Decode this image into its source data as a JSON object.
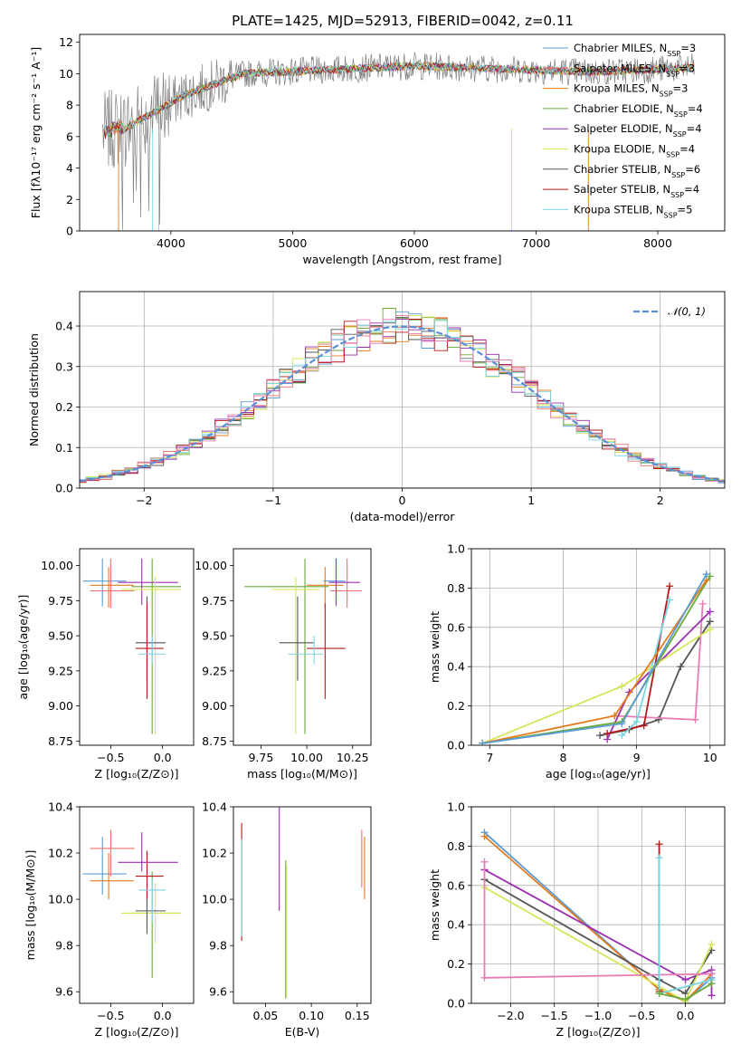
{
  "title": "PLATE=1425, MJD=52913, FIBERID=0042, z=0.11",
  "colors": {
    "chabrier_miles": "#5b9bd5",
    "salpeter_miles": "#e8726a",
    "kroupa_miles": "#e57c1c",
    "chabrier_elodie": "#6aaa3a",
    "salpeter_elodie": "#9b2faf",
    "kroupa_elodie": "#d7e55a",
    "chabrier_stelib": "#555555",
    "salpeter_stelib": "#b31b1b",
    "kroupa_stelib": "#78d6e0",
    "pink": "#e57db4",
    "spectrum": "#808080",
    "normal": "#5b8fd6"
  },
  "chart_data": [
    {
      "type": "line",
      "xlabel": "wavelength [Angstrom, rest frame]",
      "ylabel": "Flux [fλ10⁻¹⁷ erg cm⁻² s⁻¹ A⁻¹]",
      "xlim": [
        3250,
        8550
      ],
      "ylim": [
        0,
        12.5
      ],
      "xticks": [
        4000,
        5000,
        6000,
        7000,
        8000
      ],
      "yticks": [
        0,
        2,
        4,
        6,
        8,
        10,
        12
      ],
      "legend": [
        {
          "label": "Chabrier MILES, N",
          "sub": "SSP",
          "val": "=3",
          "color": "#5b9bd5"
        },
        {
          "label": "Salpeter MILES, N",
          "sub": "SSP",
          "val": "=3",
          "color": "#e8726a"
        },
        {
          "label": "Kroupa MILES, N",
          "sub": "SSP",
          "val": "=3",
          "color": "#e57c1c"
        },
        {
          "label": "Chabrier ELODIE, N",
          "sub": "SSP",
          "val": "=4",
          "color": "#6aaa3a"
        },
        {
          "label": "Salpeter ELODIE, N",
          "sub": "SSP",
          "val": "=4",
          "color": "#9b2faf"
        },
        {
          "label": "Kroupa ELODIE, N",
          "sub": "SSP",
          "val": "=4",
          "color": "#d7e55a"
        },
        {
          "label": "Chabrier STELIB, N",
          "sub": "SSP",
          "val": "=6",
          "color": "#555555"
        },
        {
          "label": "Salpeter STELIB, N",
          "sub": "SSP",
          "val": "=4",
          "color": "#b31b1b"
        },
        {
          "label": "Kroupa STELIB, N",
          "sub": "SSP",
          "val": "=5",
          "color": "#78d6e0"
        }
      ]
    },
    {
      "type": "line",
      "xlabel": "(data-model)/error",
      "ylabel": "Normed distribution",
      "xlim": [
        -2.5,
        2.5
      ],
      "ylim": [
        0,
        0.485
      ],
      "xticks": [
        -2,
        -1,
        0,
        1,
        2
      ],
      "yticks": [
        0.0,
        0.1,
        0.2,
        0.3,
        0.4
      ],
      "legend": "𝒩(0, 1)"
    },
    {
      "type": "scatter",
      "xlabel": "Z [log₁₀(Z/Z⊙)]",
      "ylabel": "age  [log₁₀(age/yr)]",
      "xlim": [
        -0.8,
        0.3
      ],
      "ylim": [
        8.72,
        10.12
      ],
      "xticks": [
        -0.5,
        0.0
      ],
      "yticks": [
        8.75,
        9.0,
        9.25,
        9.5,
        9.75,
        10.0
      ],
      "points": [
        {
          "x": -0.58,
          "y": 9.89,
          "ex": [
            -0.77,
            -0.35
          ],
          "ey": [
            9.71,
            10.05
          ],
          "color": "#5b9bd5"
        },
        {
          "x": -0.5,
          "y": 9.82,
          "ex": [
            -0.7,
            -0.27
          ],
          "ey": [
            9.7,
            10.05
          ],
          "color": "#e8726a"
        },
        {
          "x": -0.52,
          "y": 9.86,
          "ex": [
            -0.7,
            -0.28
          ],
          "ey": [
            9.7,
            9.99
          ],
          "color": "#e57c1c"
        },
        {
          "x": -0.1,
          "y": 9.85,
          "ex": [
            -0.3,
            0.18
          ],
          "ey": [
            8.8,
            10.05
          ],
          "color": "#6aaa3a"
        },
        {
          "x": -0.2,
          "y": 9.88,
          "ex": [
            -0.43,
            0.15
          ],
          "ey": [
            9.72,
            10.05
          ],
          "color": "#9b2faf"
        },
        {
          "x": -0.07,
          "y": 9.83,
          "ex": [
            -0.4,
            0.18
          ],
          "ey": [
            8.8,
            9.92
          ],
          "color": "#d7e55a"
        },
        {
          "x": -0.15,
          "y": 9.45,
          "ex": [
            -0.26,
            0.03
          ],
          "ey": [
            9.18,
            9.78
          ],
          "color": "#555555"
        },
        {
          "x": -0.15,
          "y": 9.41,
          "ex": [
            -0.26,
            0.01
          ],
          "ey": [
            9.05,
            9.73
          ],
          "color": "#b31b1b"
        },
        {
          "x": -0.1,
          "y": 9.37,
          "ex": [
            -0.23,
            0.03
          ],
          "ey": [
            9.3,
            9.5
          ],
          "color": "#78d6e0"
        }
      ]
    },
    {
      "type": "scatter",
      "xlabel": "mass [log₁₀(M/M⊙)]",
      "ylabel": "",
      "xlim": [
        9.6,
        10.35
      ],
      "ylim": [
        8.72,
        10.12
      ],
      "xticks": [
        9.75,
        10.0,
        10.25
      ],
      "yticks": [
        8.75,
        9.0,
        9.25,
        9.5,
        9.75,
        10.0
      ],
      "points": [
        {
          "x": 10.16,
          "y": 9.89,
          "ex": [
            10.09,
            10.21
          ],
          "ey": [
            9.71,
            10.05
          ],
          "color": "#5b9bd5"
        },
        {
          "x": 10.22,
          "y": 9.82,
          "ex": [
            10.13,
            10.3
          ],
          "ey": [
            9.7,
            10.05
          ],
          "color": "#e8726a"
        },
        {
          "x": 10.1,
          "y": 9.86,
          "ex": [
            10.0,
            10.2
          ],
          "ey": [
            9.7,
            9.99
          ],
          "color": "#e57c1c"
        },
        {
          "x": 9.99,
          "y": 9.85,
          "ex": [
            9.66,
            10.12
          ],
          "ey": [
            8.8,
            10.05
          ],
          "color": "#6aaa3a"
        },
        {
          "x": 10.16,
          "y": 9.88,
          "ex": [
            10.12,
            10.29
          ],
          "ey": [
            9.72,
            10.05
          ],
          "color": "#9b2faf"
        },
        {
          "x": 9.94,
          "y": 9.83,
          "ex": [
            9.81,
            10.07
          ],
          "ey": [
            8.8,
            9.92
          ],
          "color": "#d7e55a"
        },
        {
          "x": 9.95,
          "y": 9.45,
          "ex": [
            9.85,
            10.04
          ],
          "ey": [
            9.18,
            9.78
          ],
          "color": "#555555"
        },
        {
          "x": 10.1,
          "y": 9.41,
          "ex": [
            10.0,
            10.21
          ],
          "ey": [
            9.05,
            9.73
          ],
          "color": "#b31b1b"
        },
        {
          "x": 10.04,
          "y": 9.37,
          "ex": [
            9.9,
            10.09
          ],
          "ey": [
            9.3,
            9.5
          ],
          "color": "#78d6e0"
        }
      ]
    },
    {
      "type": "line",
      "xlabel": "age  [log₁₀(age/yr)]",
      "ylabel": "mass weight",
      "xlim": [
        6.75,
        10.2
      ],
      "ylim": [
        0,
        1
      ],
      "xticks": [
        7,
        8,
        9,
        10
      ],
      "yticks": [
        0.0,
        0.2,
        0.4,
        0.6,
        0.8,
        1.0
      ],
      "series": [
        {
          "color": "#555555",
          "x": [
            8.5,
            8.9,
            9.3,
            9.6,
            10.0
          ],
          "y": [
            0.05,
            0.08,
            0.13,
            0.4,
            0.63
          ]
        },
        {
          "color": "#e57db4",
          "x": [
            8.7,
            9.8,
            9.9
          ],
          "y": [
            0.15,
            0.13,
            0.72
          ]
        },
        {
          "color": "#9b2faf",
          "x": [
            8.6,
            8.9,
            10.0
          ],
          "y": [
            0.03,
            0.27,
            0.68
          ]
        },
        {
          "color": "#b31b1b",
          "x": [
            8.6,
            9.1,
            9.45
          ],
          "y": [
            0.06,
            0.1,
            0.81
          ]
        },
        {
          "color": "#78d6e0",
          "x": [
            8.8,
            9.0,
            9.45
          ],
          "y": [
            0.05,
            0.12,
            0.74
          ]
        },
        {
          "color": "#d7e55a",
          "x": [
            6.9,
            8.8,
            10.0
          ],
          "y": [
            0.01,
            0.3,
            0.59
          ]
        },
        {
          "color": "#6aaa3a",
          "x": [
            6.9,
            8.8,
            10.0
          ],
          "y": [
            0.01,
            0.12,
            0.86
          ]
        },
        {
          "color": "#e57c1c",
          "x": [
            6.9,
            8.7,
            9.95
          ],
          "y": [
            0.01,
            0.15,
            0.84
          ]
        },
        {
          "color": "#5b9bd5",
          "x": [
            6.9,
            8.8,
            9.95
          ],
          "y": [
            0.01,
            0.11,
            0.87
          ]
        }
      ]
    },
    {
      "type": "scatter",
      "xlabel": "Z [log₁₀(Z/Z⊙)]",
      "ylabel": "mass [log₁₀(M/M⊙)]",
      "xlim": [
        -0.8,
        0.3
      ],
      "ylim": [
        9.55,
        10.4
      ],
      "xticks": [
        -0.5,
        0.0
      ],
      "yticks": [
        9.6,
        9.8,
        10.0,
        10.2,
        10.4
      ],
      "points": [
        {
          "x": -0.58,
          "y": 10.11,
          "ex": [
            -0.77,
            -0.35
          ],
          "ey": [
            10.02,
            10.27
          ],
          "color": "#5b9bd5"
        },
        {
          "x": -0.5,
          "y": 10.22,
          "ex": [
            -0.7,
            -0.27
          ],
          "ey": [
            10.1,
            10.3
          ],
          "color": "#e8726a"
        },
        {
          "x": -0.52,
          "y": 10.08,
          "ex": [
            -0.7,
            -0.28
          ],
          "ey": [
            10.0,
            10.2
          ],
          "color": "#e57c1c"
        },
        {
          "x": -0.1,
          "y": 9.94,
          "ex": [
            -0.3,
            0.18
          ],
          "ey": [
            9.66,
            10.12
          ],
          "color": "#6aaa3a"
        },
        {
          "x": -0.2,
          "y": 10.16,
          "ex": [
            -0.43,
            0.15
          ],
          "ey": [
            10.12,
            10.29
          ],
          "color": "#9b2faf"
        },
        {
          "x": -0.07,
          "y": 9.94,
          "ex": [
            -0.4,
            0.18
          ],
          "ey": [
            9.81,
            10.07
          ],
          "color": "#d7e55a"
        },
        {
          "x": -0.15,
          "y": 9.95,
          "ex": [
            -0.26,
            0.03
          ],
          "ey": [
            9.85,
            10.04
          ],
          "color": "#555555"
        },
        {
          "x": -0.15,
          "y": 10.1,
          "ex": [
            -0.26,
            0.01
          ],
          "ey": [
            10.0,
            10.21
          ],
          "color": "#b31b1b"
        },
        {
          "x": -0.1,
          "y": 10.04,
          "ex": [
            -0.23,
            0.03
          ],
          "ey": [
            9.9,
            10.09
          ],
          "color": "#78d6e0"
        }
      ]
    },
    {
      "type": "scatter",
      "xlabel": "E(B-V)",
      "ylabel": "",
      "xlim": [
        0.015,
        0.165
      ],
      "ylim": [
        9.55,
        10.4
      ],
      "xticks": [
        0.05,
        0.1,
        0.15
      ],
      "yticks": [
        9.6,
        9.8,
        10.0,
        10.2,
        10.4
      ],
      "points": [
        {
          "x": 0.024,
          "y": 10.1,
          "ex": [
            0.024,
            0.024
          ],
          "ey": [
            9.82,
            10.33
          ],
          "color": "#b31b1b"
        },
        {
          "x": 0.024,
          "y": 10.0,
          "ex": [
            0.024,
            0.024
          ],
          "ey": [
            9.84,
            10.26
          ],
          "color": "#78d6e0"
        },
        {
          "x": 0.065,
          "y": 10.15,
          "ex": [
            0.065,
            0.065
          ],
          "ey": [
            9.95,
            10.4
          ],
          "color": "#9b2faf"
        },
        {
          "x": 0.072,
          "y": 9.9,
          "ex": [
            0.072,
            0.072
          ],
          "ey": [
            9.57,
            10.17
          ],
          "color": "#6aaa3a"
        },
        {
          "x": 0.073,
          "y": 9.87,
          "ex": [
            0.073,
            0.073
          ],
          "ey": [
            9.58,
            10.15
          ],
          "color": "#d7e55a"
        },
        {
          "x": 0.155,
          "y": 10.2,
          "ex": [
            0.155,
            0.155
          ],
          "ey": [
            10.05,
            10.3
          ],
          "color": "#e8726a"
        },
        {
          "x": 0.158,
          "y": 10.1,
          "ex": [
            0.158,
            0.158
          ],
          "ey": [
            10.0,
            10.27
          ],
          "color": "#e57c1c"
        }
      ]
    },
    {
      "type": "line",
      "xlabel": "Z [log₁₀(Z/Z⊙)]",
      "ylabel": "mass weight",
      "xlim": [
        -2.45,
        0.45
      ],
      "ylim": [
        0,
        1
      ],
      "xticks": [
        -2.0,
        -1.5,
        -1.0,
        -0.5,
        0.0
      ],
      "yticks": [
        0.0,
        0.2,
        0.4,
        0.6,
        0.8,
        1.0
      ],
      "series": [
        {
          "color": "#5b9bd5",
          "x": [
            -2.3,
            -0.3,
            0.0,
            0.3
          ],
          "y": [
            0.87,
            0.07,
            0.01,
            0.13
          ]
        },
        {
          "color": "#e57c1c",
          "x": [
            -2.3,
            -0.3,
            0.0,
            0.3
          ],
          "y": [
            0.85,
            0.07,
            0.01,
            0.15
          ]
        },
        {
          "color": "#9b2faf",
          "x": [
            -2.3,
            0.0,
            0.3,
            0.3
          ],
          "y": [
            0.68,
            0.12,
            0.17,
            0.04
          ]
        },
        {
          "color": "#555555",
          "x": [
            -2.3,
            -0.3,
            0.0,
            0.3
          ],
          "y": [
            0.63,
            0.12,
            0.05,
            0.27
          ]
        },
        {
          "color": "#d7e55a",
          "x": [
            -2.3,
            0.0,
            0.3
          ],
          "y": [
            0.59,
            0.01,
            0.3
          ]
        },
        {
          "color": "#e57db4",
          "x": [
            -2.3,
            -2.3,
            0.3
          ],
          "y": [
            0.72,
            0.13,
            0.15
          ]
        },
        {
          "color": "#b31b1b",
          "x": [
            -0.3,
            -0.3
          ],
          "y": [
            0.81,
            0.06
          ]
        },
        {
          "color": "#78d6e0",
          "x": [
            -0.3,
            -0.3,
            0.3
          ],
          "y": [
            0.74,
            0.05,
            0.12
          ]
        },
        {
          "color": "#6aaa3a",
          "x": [
            -0.3,
            0.0,
            0.3
          ],
          "y": [
            0.05,
            0.02,
            0.1
          ]
        }
      ]
    }
  ]
}
